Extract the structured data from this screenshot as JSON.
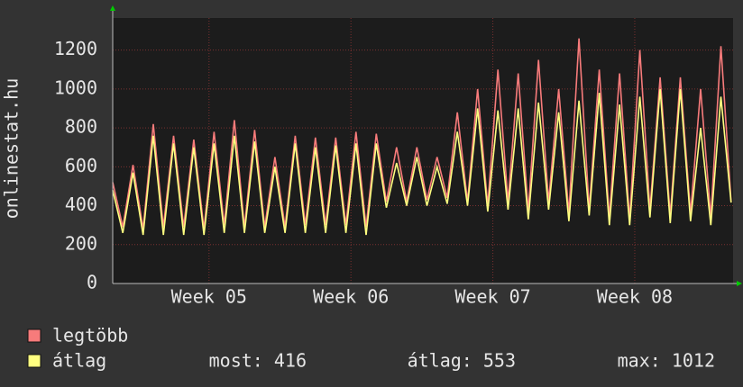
{
  "chart_data": {
    "type": "line",
    "y_label": "onlinestat.hu",
    "series": [
      {
        "name": "legtöbb",
        "color": "#f77b7b",
        "values": [
          520,
          290,
          610,
          280,
          820,
          290,
          760,
          290,
          740,
          280,
          780,
          300,
          840,
          290,
          790,
          290,
          650,
          290,
          760,
          300,
          750,
          300,
          750,
          300,
          780,
          290,
          770,
          420,
          700,
          420,
          700,
          430,
          650,
          440,
          880,
          420,
          1000,
          400,
          1100,
          420,
          1080,
          370,
          1150,
          420,
          1000,
          360,
          1260,
          380,
          1100,
          340,
          1080,
          330,
          1200,
          380,
          1060,
          350,
          1060,
          360,
          1000,
          340,
          1220,
          420
        ]
      },
      {
        "name": "átlag",
        "color": "#ffff80",
        "values": [
          480,
          260,
          570,
          250,
          760,
          250,
          720,
          250,
          700,
          250,
          720,
          260,
          760,
          260,
          730,
          260,
          600,
          260,
          720,
          260,
          700,
          260,
          710,
          260,
          720,
          250,
          720,
          390,
          620,
          400,
          650,
          400,
          600,
          410,
          780,
          400,
          900,
          370,
          890,
          380,
          900,
          330,
          930,
          380,
          880,
          320,
          940,
          350,
          980,
          300,
          920,
          300,
          960,
          340,
          1000,
          310,
          1000,
          320,
          800,
          300,
          960,
          416
        ]
      }
    ],
    "stats": [
      "most: 416",
      "átlag: 553",
      "max: 1012"
    ],
    "xlim": [
      0,
      61.2
    ],
    "xticks": [
      {
        "value": 9.5,
        "label": "Week 05"
      },
      {
        "value": 23.5,
        "label": "Week 06"
      },
      {
        "value": 37.5,
        "label": "Week 07"
      },
      {
        "value": 51.5,
        "label": "Week 08"
      }
    ],
    "ylim": [
      0,
      1365
    ],
    "yticks": [
      0,
      200,
      400,
      600,
      800,
      1000,
      1200
    ],
    "grid": true
  }
}
